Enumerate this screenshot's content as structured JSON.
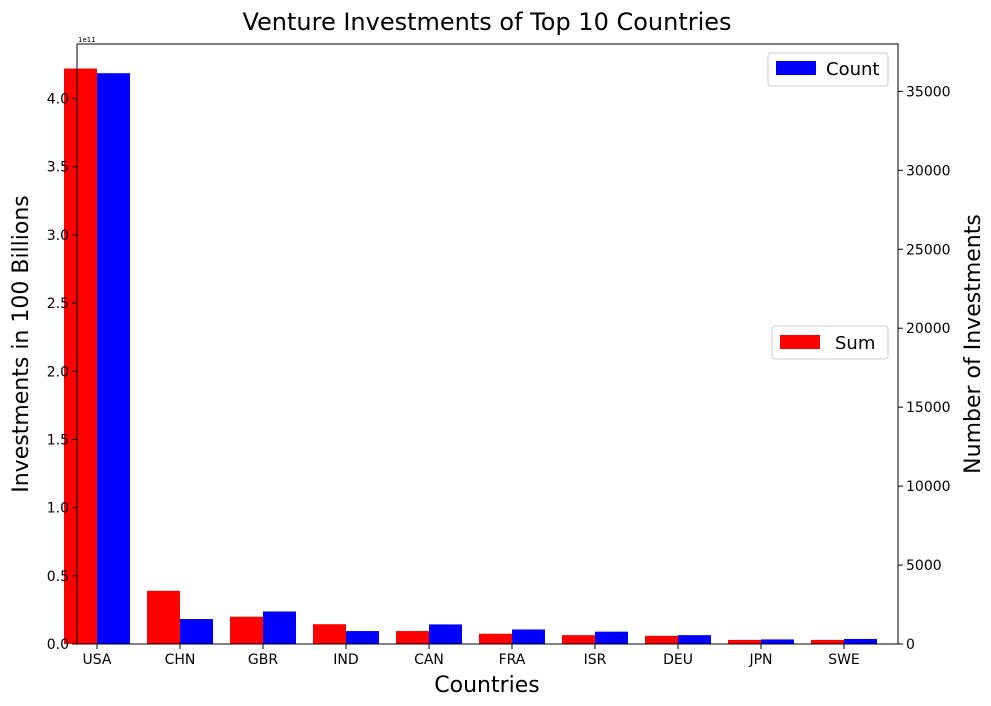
{
  "chart_data": {
    "type": "bar",
    "title": "Venture Investments of Top 10 Countries",
    "xlabel": "Countries",
    "ylabel_left": "Investments in 100 Billions",
    "ylabel_right": "Number of Investments",
    "left_axis_multiplier": "1e11",
    "categories": [
      "USA",
      "CHN",
      "GBR",
      "IND",
      "CAN",
      "FRA",
      "ISR",
      "DEU",
      "JPN",
      "SWE"
    ],
    "left_axis": {
      "ylim": [
        0,
        4.4
      ],
      "ticks": [
        0.0,
        0.5,
        1.0,
        1.5,
        2.0,
        2.5,
        3.0,
        3.5,
        4.0
      ],
      "tick_labels": [
        "0.0",
        "0.5",
        "1.0",
        "1.5",
        "2.0",
        "2.5",
        "3.0",
        "3.5",
        "4.0"
      ]
    },
    "right_axis": {
      "ylim": [
        0,
        38000
      ],
      "ticks": [
        0,
        5000,
        10000,
        15000,
        20000,
        25000,
        30000,
        35000
      ],
      "tick_labels": [
        "0",
        "5000",
        "10000",
        "15000",
        "20000",
        "25000",
        "30000",
        "35000"
      ]
    },
    "series": [
      {
        "name": "Sum",
        "axis": "left",
        "color": "#ff0000",
        "values": [
          4.22,
          0.39,
          0.2,
          0.145,
          0.095,
          0.075,
          0.065,
          0.06,
          0.03,
          0.03
        ]
      },
      {
        "name": "Count",
        "axis": "right",
        "color": "#0000ff",
        "values": [
          36150,
          1580,
          2060,
          820,
          1240,
          920,
          780,
          560,
          290,
          320
        ]
      }
    ],
    "legends": [
      {
        "label": "Count",
        "placement": "top-right"
      },
      {
        "label": "Sum",
        "placement": "center-right"
      }
    ],
    "grid": false
  }
}
